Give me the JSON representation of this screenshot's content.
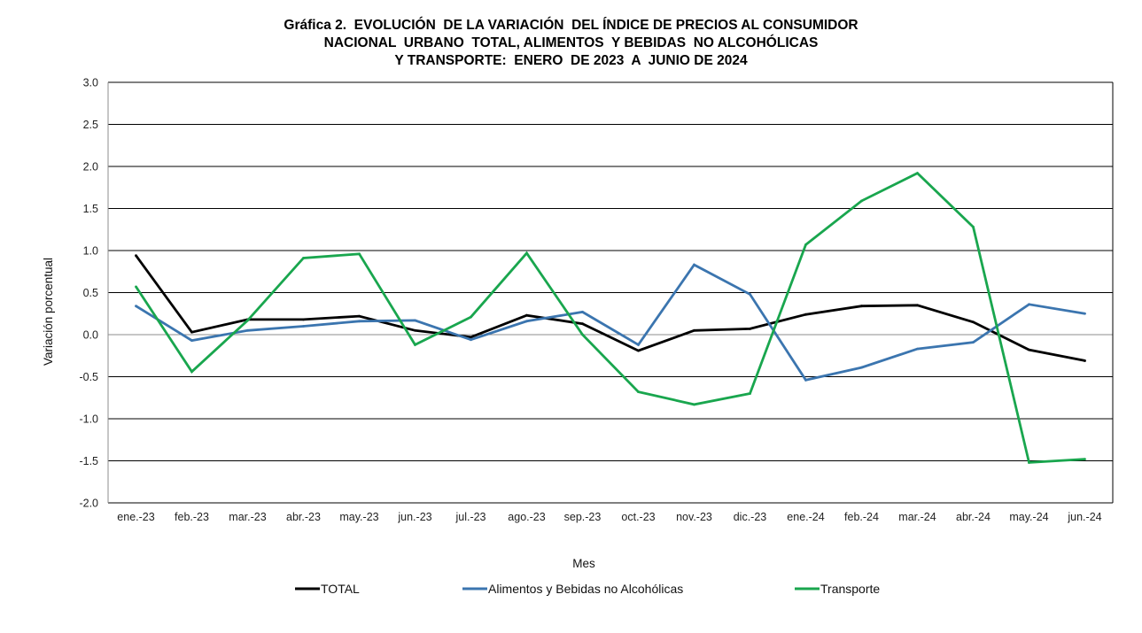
{
  "chart_data": {
    "type": "line",
    "title": [
      "Gráfica 2.  EVOLUCIÓN  DE LA VARIACIÓN  DEL ÍNDICE DE PRECIOS AL CONSUMIDOR",
      "NACIONAL  URBANO  TOTAL, ALIMENTOS  Y BEBIDAS  NO ALCOHÓLICAS",
      "Y TRANSPORTE:  ENERO  DE 2023  A  JUNIO DE 2024"
    ],
    "xlabel": "Mes",
    "ylabel": "Variación  porcentual",
    "ylim": [
      -2.0,
      3.0
    ],
    "yticks": [
      "3.0",
      "2.5",
      "2.0",
      "1.5",
      "1.0",
      "0.5",
      "0.0",
      "-0.5",
      "-1.0",
      "-1.5",
      "-2.0"
    ],
    "ytick_values": [
      3.0,
      2.5,
      2.0,
      1.5,
      1.0,
      0.5,
      0.0,
      -0.5,
      -1.0,
      -1.5,
      -2.0
    ],
    "grid": true,
    "legend_position": "bottom",
    "categories": [
      "ene.-23",
      "feb.-23",
      "mar.-23",
      "abr.-23",
      "may.-23",
      "jun.-23",
      "jul.-23",
      "ago.-23",
      "sep.-23",
      "oct.-23",
      "nov.-23",
      "dic.-23",
      "ene.-24",
      "feb.-24",
      "mar.-24",
      "abr.-24",
      "may.-24",
      "jun.-24"
    ],
    "series": [
      {
        "name": "TOTAL",
        "color": "#000000",
        "values": [
          0.94,
          0.03,
          0.18,
          0.18,
          0.22,
          0.05,
          -0.03,
          0.23,
          0.13,
          -0.19,
          0.05,
          0.07,
          0.24,
          0.34,
          0.35,
          0.15,
          -0.18,
          -0.31
        ]
      },
      {
        "name": "Alimentos y Bebidas no Alcohólicas",
        "color": "#3b75af",
        "values": [
          0.34,
          -0.07,
          0.05,
          0.1,
          0.16,
          0.17,
          -0.06,
          0.16,
          0.27,
          -0.12,
          0.83,
          0.48,
          -0.54,
          -0.39,
          -0.17,
          -0.09,
          0.36,
          0.25
        ]
      },
      {
        "name": "Transporte",
        "color": "#19a64e",
        "values": [
          0.57,
          -0.44,
          0.17,
          0.91,
          0.96,
          -0.12,
          0.21,
          0.97,
          0.0,
          -0.68,
          -0.83,
          -0.7,
          1.07,
          1.59,
          1.92,
          1.28,
          -1.52,
          -1.48
        ]
      }
    ]
  }
}
